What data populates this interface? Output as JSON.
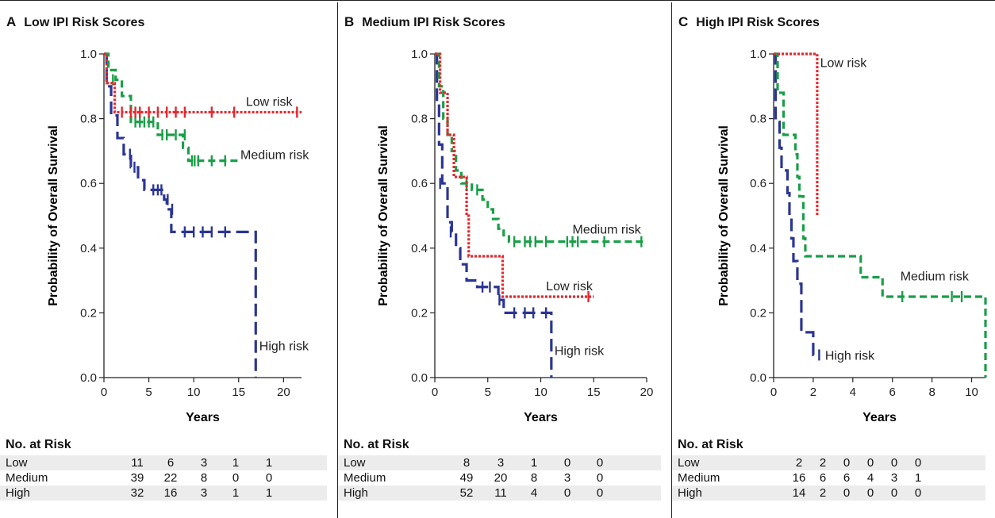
{
  "colors": {
    "low": "#e8262d",
    "medium": "#1a9e48",
    "high": "#2b3595"
  },
  "panels": [
    {
      "letter": "A",
      "title": "Low IPI Risk Scores",
      "ylabel": "Probability of Overall Survival",
      "xlabel": "Years",
      "risk_header": "No. at Risk"
    },
    {
      "letter": "B",
      "title": "Medium IPI Risk Scores",
      "ylabel": "Probability of Overall Survival",
      "xlabel": "Years",
      "risk_header": "No. at Risk"
    },
    {
      "letter": "C",
      "title": "High IPI Risk Scores",
      "ylabel": "Probability of Overall Survival",
      "xlabel": "Years",
      "risk_header": "No. at Risk"
    }
  ],
  "chart_data": [
    {
      "type": "line",
      "title": "Low IPI Risk Scores",
      "xlabel": "Years",
      "ylabel": "Probability of Overall Survival",
      "xlim": [
        0,
        22
      ],
      "ylim": [
        0,
        1
      ],
      "xticks": [
        "0",
        "5",
        "10",
        "15",
        "20"
      ],
      "yticks": [
        "0.0",
        "0.2",
        "0.4",
        "0.6",
        "0.8",
        "1.0"
      ],
      "series": [
        {
          "name": "Low risk",
          "key": "low",
          "steps": [
            [
              0,
              1.0
            ],
            [
              0.3,
              0.91
            ],
            [
              1.2,
              0.82
            ],
            [
              22,
              0.82
            ]
          ],
          "censors": [
            [
              2,
              0.82
            ],
            [
              3,
              0.82
            ],
            [
              3.5,
              0.82
            ],
            [
              4,
              0.82
            ],
            [
              5,
              0.82
            ],
            [
              6,
              0.82
            ],
            [
              7,
              0.82
            ],
            [
              8,
              0.82
            ],
            [
              9,
              0.82
            ],
            [
              12,
              0.82
            ],
            [
              14.5,
              0.82
            ],
            [
              21.5,
              0.82
            ]
          ],
          "label_pos": [
            15.8,
            0.84
          ]
        },
        {
          "name": "Medium risk",
          "key": "medium",
          "steps": [
            [
              0,
              1.0
            ],
            [
              0.5,
              0.95
            ],
            [
              1.3,
              0.92
            ],
            [
              2.0,
              0.87
            ],
            [
              3.0,
              0.79
            ],
            [
              6.0,
              0.75
            ],
            [
              8.8,
              0.71
            ],
            [
              9.4,
              0.67
            ],
            [
              15,
              0.67
            ]
          ],
          "censors": [
            [
              1.0,
              0.92
            ],
            [
              3.5,
              0.79
            ],
            [
              4.0,
              0.79
            ],
            [
              4.5,
              0.79
            ],
            [
              5.0,
              0.79
            ],
            [
              5.5,
              0.79
            ],
            [
              6.5,
              0.75
            ],
            [
              7.0,
              0.75
            ],
            [
              8.0,
              0.75
            ],
            [
              9.0,
              0.75
            ],
            [
              9.8,
              0.67
            ],
            [
              10.1,
              0.67
            ],
            [
              10.5,
              0.67
            ],
            [
              12,
              0.67
            ],
            [
              13.5,
              0.67
            ]
          ],
          "label_pos": [
            15.2,
            0.675
          ]
        },
        {
          "name": "High risk",
          "key": "high",
          "steps": [
            [
              0,
              1.0
            ],
            [
              0.3,
              0.9
            ],
            [
              0.8,
              0.81
            ],
            [
              1.5,
              0.74
            ],
            [
              2.2,
              0.69
            ],
            [
              3.0,
              0.65
            ],
            [
              3.8,
              0.61
            ],
            [
              4.5,
              0.58
            ],
            [
              6.7,
              0.55
            ],
            [
              7.0,
              0.52
            ],
            [
              7.5,
              0.45
            ],
            [
              16.9,
              0.45
            ],
            [
              16.9,
              0.0
            ]
          ],
          "censors": [
            [
              2.9,
              0.69
            ],
            [
              3.4,
              0.65
            ],
            [
              5.5,
              0.58
            ],
            [
              6.0,
              0.58
            ],
            [
              6.4,
              0.58
            ],
            [
              7.1,
              0.55
            ],
            [
              7.6,
              0.52
            ],
            [
              9,
              0.45
            ],
            [
              10,
              0.45
            ],
            [
              11,
              0.45
            ],
            [
              12,
              0.45
            ],
            [
              13.5,
              0.45
            ]
          ],
          "label_pos": [
            17.3,
            0.085
          ]
        }
      ],
      "number_at_risk": {
        "header": "No. at Risk",
        "timepoints": [
          0,
          5,
          10,
          15,
          20
        ],
        "rows": [
          {
            "label": "Low",
            "values": [
              11,
              6,
              3,
              1,
              1
            ]
          },
          {
            "label": "Medium",
            "values": [
              39,
              22,
              8,
              0,
              0
            ]
          },
          {
            "label": "High",
            "values": [
              32,
              16,
              3,
              1,
              1
            ]
          }
        ]
      }
    },
    {
      "type": "line",
      "title": "Medium IPI Risk Scores",
      "xlabel": "Years",
      "ylabel": "Probability of Overall Survival",
      "xlim": [
        0,
        20
      ],
      "ylim": [
        0,
        1
      ],
      "xticks": [
        "0",
        "5",
        "10",
        "15",
        "20"
      ],
      "yticks": [
        "0.0",
        "0.2",
        "0.4",
        "0.6",
        "0.8",
        "1.0"
      ],
      "series": [
        {
          "name": "Low risk",
          "key": "low",
          "steps": [
            [
              0,
              1.0
            ],
            [
              0.5,
              0.88
            ],
            [
              1.2,
              0.75
            ],
            [
              1.8,
              0.62
            ],
            [
              3.0,
              0.5
            ],
            [
              3.2,
              0.375
            ],
            [
              6.3,
              0.375
            ],
            [
              6.4,
              0.25
            ],
            [
              15,
              0.25
            ]
          ],
          "censors": [
            [
              14.5,
              0.25
            ]
          ],
          "label_pos": [
            10.5,
            0.27
          ]
        },
        {
          "name": "Medium risk",
          "key": "medium",
          "steps": [
            [
              0,
              1.0
            ],
            [
              0.4,
              0.9
            ],
            [
              0.8,
              0.8
            ],
            [
              1.2,
              0.75
            ],
            [
              1.6,
              0.7
            ],
            [
              2.0,
              0.64
            ],
            [
              2.5,
              0.6
            ],
            [
              3.5,
              0.58
            ],
            [
              4.5,
              0.55
            ],
            [
              5.0,
              0.52
            ],
            [
              5.5,
              0.49
            ],
            [
              6.0,
              0.46
            ],
            [
              6.5,
              0.44
            ],
            [
              7.0,
              0.42
            ],
            [
              20,
              0.42
            ]
          ],
          "censors": [
            [
              3.0,
              0.6
            ],
            [
              4.0,
              0.58
            ],
            [
              7.5,
              0.42
            ],
            [
              8.5,
              0.42
            ],
            [
              9.0,
              0.42
            ],
            [
              9.5,
              0.42
            ],
            [
              10.5,
              0.42
            ],
            [
              12.5,
              0.42
            ],
            [
              13.0,
              0.42
            ],
            [
              13.5,
              0.42
            ],
            [
              16.0,
              0.42
            ],
            [
              19.5,
              0.42
            ]
          ],
          "label_pos": [
            13.0,
            0.445
          ]
        },
        {
          "name": "High risk",
          "key": "high",
          "steps": [
            [
              0,
              1.0
            ],
            [
              0.2,
              0.85
            ],
            [
              0.4,
              0.72
            ],
            [
              0.7,
              0.6
            ],
            [
              1.2,
              0.48
            ],
            [
              1.6,
              0.45
            ],
            [
              2.0,
              0.4
            ],
            [
              2.4,
              0.35
            ],
            [
              3.0,
              0.3
            ],
            [
              4.0,
              0.28
            ],
            [
              6.0,
              0.24
            ],
            [
              6.5,
              0.2
            ],
            [
              11,
              0.2
            ],
            [
              11,
              0.0
            ]
          ],
          "censors": [
            [
              0.5,
              0.6
            ],
            [
              1.5,
              0.45
            ],
            [
              4.5,
              0.28
            ],
            [
              5.2,
              0.28
            ],
            [
              6.1,
              0.24
            ],
            [
              7.5,
              0.2
            ],
            [
              8.5,
              0.2
            ],
            [
              9.3,
              0.2
            ],
            [
              10.5,
              0.2
            ]
          ],
          "label_pos": [
            11.3,
            0.07
          ]
        }
      ],
      "number_at_risk": {
        "header": "No. at Risk",
        "timepoints": [
          0,
          5,
          10,
          15,
          20
        ],
        "rows": [
          {
            "label": "Low",
            "values": [
              8,
              3,
              1,
              0,
              0
            ]
          },
          {
            "label": "Medium",
            "values": [
              49,
              20,
              8,
              3,
              0
            ]
          },
          {
            "label": "High",
            "values": [
              52,
              11,
              4,
              0,
              0
            ]
          }
        ]
      }
    },
    {
      "type": "line",
      "title": "High IPI Risk Scores",
      "xlabel": "Years",
      "ylabel": "Probability of Overall Survival",
      "xlim": [
        0,
        10.7
      ],
      "ylim": [
        0,
        1
      ],
      "xticks": [
        "0",
        "2",
        "4",
        "6",
        "8",
        "10"
      ],
      "yticks": [
        "0.0",
        "0.2",
        "0.4",
        "0.6",
        "0.8",
        "1.0"
      ],
      "series": [
        {
          "name": "Low risk",
          "key": "low",
          "steps": [
            [
              0,
              1.0
            ],
            [
              2.2,
              1.0
            ],
            [
              2.2,
              0.5
            ]
          ],
          "censors": [],
          "label_pos": [
            2.35,
            0.96
          ]
        },
        {
          "name": "Medium risk",
          "key": "medium",
          "steps": [
            [
              0,
              1.0
            ],
            [
              0.2,
              0.88
            ],
            [
              0.5,
              0.75
            ],
            [
              1.1,
              0.69
            ],
            [
              1.2,
              0.62
            ],
            [
              1.3,
              0.56
            ],
            [
              1.5,
              0.43
            ],
            [
              1.6,
              0.375
            ],
            [
              4.3,
              0.375
            ],
            [
              4.4,
              0.31
            ],
            [
              5.4,
              0.31
            ],
            [
              5.5,
              0.25
            ],
            [
              10.7,
              0.25
            ],
            [
              10.7,
              0.0
            ]
          ],
          "censors": [
            [
              6.5,
              0.25
            ],
            [
              9.0,
              0.25
            ],
            [
              9.5,
              0.25
            ]
          ],
          "label_pos": [
            6.4,
            0.3
          ]
        },
        {
          "name": "High risk",
          "key": "high",
          "steps": [
            [
              0,
              1.0
            ],
            [
              0.1,
              0.79
            ],
            [
              0.3,
              0.71
            ],
            [
              0.4,
              0.64
            ],
            [
              0.7,
              0.57
            ],
            [
              0.8,
              0.5
            ],
            [
              0.9,
              0.43
            ],
            [
              1.0,
              0.36
            ],
            [
              1.2,
              0.29
            ],
            [
              1.4,
              0.14
            ],
            [
              1.9,
              0.14
            ],
            [
              2.0,
              0.07
            ],
            [
              2.2,
              0.07
            ]
          ],
          "censors": [
            [
              2.3,
              0.07
            ]
          ],
          "label_pos": [
            2.6,
            0.055
          ]
        }
      ],
      "number_at_risk": {
        "header": "No. at Risk",
        "timepoints": [
          0,
          2,
          4,
          6,
          8,
          10
        ],
        "rows": [
          {
            "label": "Low",
            "values": [
              2,
              2,
              0,
              0,
              0,
              0
            ]
          },
          {
            "label": "Medium",
            "values": [
              16,
              6,
              6,
              4,
              3,
              1
            ]
          },
          {
            "label": "High",
            "values": [
              14,
              2,
              0,
              0,
              0,
              0
            ]
          }
        ]
      }
    }
  ]
}
